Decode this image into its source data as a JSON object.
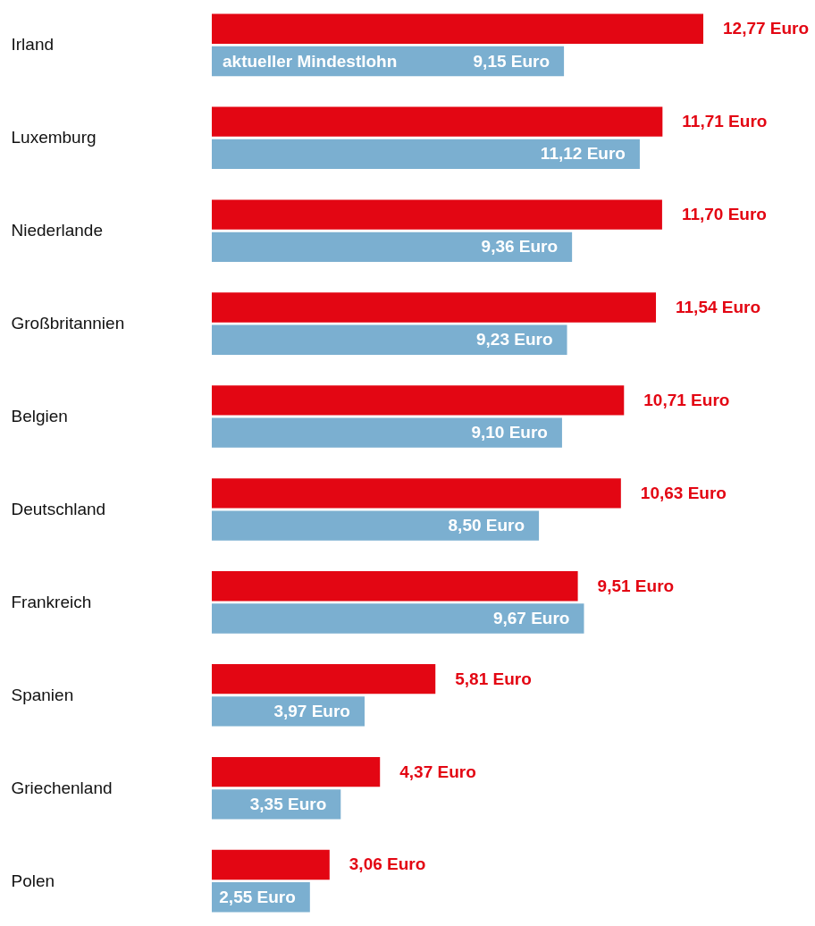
{
  "chart_data": {
    "type": "bar",
    "orientation": "horizontal",
    "categories": [
      "Irland",
      "Luxemburg",
      "Niederlande",
      "Großbritannien",
      "Belgien",
      "Deutschland",
      "Frankreich",
      "Spanien",
      "Griechenland",
      "Polen"
    ],
    "series": [
      {
        "color": "#e30613",
        "values": [
          12.77,
          11.71,
          11.7,
          11.54,
          10.71,
          10.63,
          9.51,
          5.81,
          4.37,
          3.06
        ],
        "value_labels": [
          "12,77 Euro",
          "11,71 Euro",
          "11,70 Euro",
          "11,54 Euro",
          "10,71 Euro",
          "10,63 Euro",
          "9,51 Euro",
          "5,81 Euro",
          "4,37 Euro",
          "3,06 Euro"
        ]
      },
      {
        "name": "aktueller Mindestlohn",
        "color": "#7bafd0",
        "values": [
          9.15,
          11.12,
          9.36,
          9.23,
          9.1,
          8.5,
          9.67,
          3.97,
          3.35,
          2.55
        ],
        "value_labels": [
          "9,15 Euro",
          "11,12 Euro",
          "9,36 Euro",
          "9,23 Euro",
          "9,10 Euro",
          "8,50 Euro",
          "9,67 Euro",
          "3,97 Euro",
          "3,35 Euro",
          "2,55 Euro"
        ]
      }
    ],
    "grid": false
  }
}
